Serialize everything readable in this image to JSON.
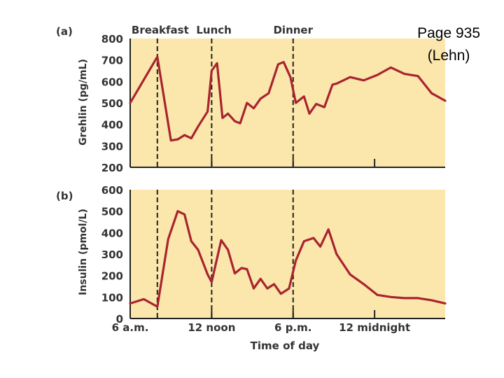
{
  "page_note": {
    "line1": "Page 935",
    "line2": "(Lehn)"
  },
  "colors": {
    "panel_bg": "#fbe7ac",
    "series": "#a82430",
    "text": "#333333",
    "axis": "#222222"
  },
  "chart_data": [
    {
      "type": "line",
      "panel_label": "(a)",
      "ylabel": "Grehlin (pg/mL)",
      "ylim": [
        200,
        800
      ],
      "yticks": [
        200,
        300,
        400,
        500,
        600,
        700,
        800
      ],
      "meals": [
        "Breakfast",
        "Lunch",
        "Dinner"
      ],
      "meal_times": [
        8,
        12,
        18
      ],
      "series": [
        {
          "name": "Grehlin",
          "x": [
            6,
            8,
            9,
            9.5,
            10,
            10.5,
            11,
            11.7,
            12,
            12.4,
            12.8,
            13.2,
            13.7,
            14.1,
            14.6,
            15.1,
            15.6,
            16.2,
            16.9,
            17.3,
            17.8,
            18.2,
            18.8,
            19.2,
            19.7,
            20.3,
            20.9,
            21.2,
            22.2,
            23.2,
            24.2,
            25.2,
            26.2,
            27.2,
            28.2,
            29.2
          ],
          "values": [
            500,
            715,
            325,
            330,
            350,
            335,
            390,
            460,
            650,
            685,
            430,
            450,
            415,
            405,
            500,
            475,
            520,
            545,
            680,
            690,
            620,
            500,
            530,
            450,
            495,
            480,
            585,
            590,
            620,
            605,
            630,
            665,
            635,
            625,
            545,
            510
          ]
        }
      ]
    },
    {
      "type": "line",
      "panel_label": "(b)",
      "ylabel": "Insulin (pmol/L)",
      "xlabel": "Time of day",
      "ylim": [
        0,
        600
      ],
      "yticks": [
        0,
        100,
        200,
        300,
        400,
        500,
        600
      ],
      "xticks": [
        6,
        12,
        18,
        24
      ],
      "xticklabels": [
        "6 a.m.",
        "12 noon",
        "6 p.m.",
        "12 midnight"
      ],
      "meal_times": [
        8,
        12,
        18
      ],
      "series": [
        {
          "name": "Insulin",
          "x": [
            6,
            7,
            8,
            8.8,
            9.5,
            10,
            10.5,
            11,
            11.7,
            12,
            12.7,
            13.2,
            13.7,
            14.2,
            14.6,
            15.1,
            15.6,
            16.1,
            16.6,
            17.1,
            17.7,
            18.2,
            18.8,
            19.5,
            20,
            20.6,
            21.2,
            22.2,
            23.2,
            24.2,
            25.2,
            26.2,
            27.2,
            28.2,
            29.2
          ],
          "values": [
            70,
            90,
            55,
            370,
            500,
            485,
            360,
            320,
            205,
            170,
            365,
            320,
            210,
            235,
            230,
            140,
            185,
            140,
            160,
            115,
            140,
            270,
            360,
            375,
            335,
            415,
            300,
            205,
            160,
            110,
            100,
            95,
            95,
            85,
            70
          ]
        }
      ]
    }
  ]
}
